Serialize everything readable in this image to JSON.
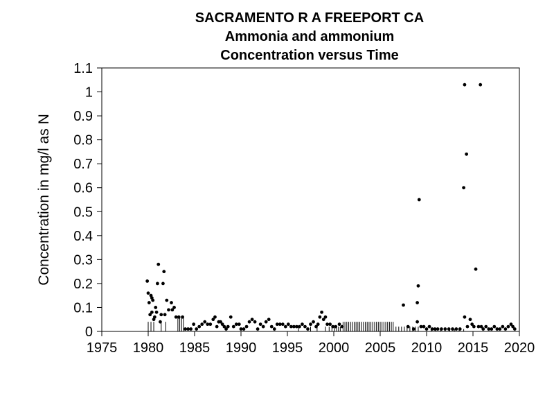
{
  "chart_data": {
    "type": "scatter",
    "title": [
      "SACRAMENTO R A FREEPORT CA",
      "Ammonia and ammonium",
      "Concentration versus Time"
    ],
    "xlabel": "",
    "ylabel": "Concentration in mg/l as N",
    "xlim": [
      1975,
      2020
    ],
    "ylim": [
      0,
      1.1
    ],
    "xticks": [
      1975,
      1980,
      1985,
      1990,
      1995,
      2000,
      2005,
      2010,
      2015,
      2020
    ],
    "yticks": [
      0,
      0.1,
      0.2,
      0.3,
      0.4,
      0.5,
      0.6,
      0.7,
      0.8,
      0.9,
      1,
      1.1
    ],
    "grid": false,
    "legend": "none",
    "marker_color": "#000000",
    "censored_values": {
      "description": "less-than values drawn as vertical lines from zero",
      "points": [
        [
          1980.0,
          0.04
        ],
        [
          1980.3,
          0.04
        ],
        [
          1980.6,
          0.04
        ],
        [
          1981.4,
          0.04
        ],
        [
          1981.9,
          0.04
        ],
        [
          1983.2,
          0.06
        ],
        [
          1983.4,
          0.06
        ],
        [
          1983.6,
          0.06
        ],
        [
          1983.8,
          0.06
        ],
        [
          1996.2,
          0.02
        ],
        [
          1997.5,
          0.02
        ],
        [
          1998.2,
          0.02
        ],
        [
          1999.1,
          0.02
        ],
        [
          1999.5,
          0.02
        ],
        [
          1999.8,
          0.02
        ],
        [
          2000.1,
          0.02
        ],
        [
          2000.3,
          0.02
        ],
        [
          2000.5,
          0.02
        ],
        [
          2000.7,
          0.02
        ],
        [
          2001.0,
          0.04
        ],
        [
          2001.2,
          0.04
        ],
        [
          2001.4,
          0.04
        ],
        [
          2001.6,
          0.04
        ],
        [
          2001.8,
          0.04
        ],
        [
          2002.0,
          0.04
        ],
        [
          2002.2,
          0.04
        ],
        [
          2002.4,
          0.04
        ],
        [
          2002.6,
          0.04
        ],
        [
          2002.8,
          0.04
        ],
        [
          2003.0,
          0.04
        ],
        [
          2003.2,
          0.04
        ],
        [
          2003.4,
          0.04
        ],
        [
          2003.6,
          0.04
        ],
        [
          2003.8,
          0.04
        ],
        [
          2004.0,
          0.04
        ],
        [
          2004.2,
          0.04
        ],
        [
          2004.4,
          0.04
        ],
        [
          2004.6,
          0.04
        ],
        [
          2004.8,
          0.04
        ],
        [
          2005.0,
          0.04
        ],
        [
          2005.2,
          0.04
        ],
        [
          2005.4,
          0.04
        ],
        [
          2005.6,
          0.04
        ],
        [
          2005.8,
          0.04
        ],
        [
          2006.0,
          0.04
        ],
        [
          2006.2,
          0.04
        ],
        [
          2006.4,
          0.04
        ],
        [
          2006.7,
          0.02
        ],
        [
          2007.0,
          0.02
        ],
        [
          2007.3,
          0.02
        ],
        [
          2007.6,
          0.02
        ],
        [
          2007.9,
          0.02
        ],
        [
          2008.2,
          0.02
        ],
        [
          2008.5,
          0.02
        ],
        [
          2008.8,
          0.02
        ],
        [
          2009.1,
          0.02
        ],
        [
          2010.5,
          0.01
        ],
        [
          2011.0,
          0.01
        ],
        [
          2011.5,
          0.01
        ],
        [
          2012.0,
          0.01
        ],
        [
          2012.5,
          0.01
        ],
        [
          2013.0,
          0.01
        ],
        [
          2013.5,
          0.01
        ],
        [
          2014.0,
          0.01
        ]
      ]
    },
    "points": [
      [
        1979.9,
        0.21
      ],
      [
        1980.0,
        0.16
      ],
      [
        1980.1,
        0.12
      ],
      [
        1980.3,
        0.15
      ],
      [
        1980.4,
        0.14
      ],
      [
        1980.5,
        0.13
      ],
      [
        1980.2,
        0.07
      ],
      [
        1980.4,
        0.08
      ],
      [
        1980.6,
        0.05
      ],
      [
        1980.7,
        0.06
      ],
      [
        1980.8,
        0.1
      ],
      [
        1980.9,
        0.08
      ],
      [
        1981.0,
        0.2
      ],
      [
        1981.1,
        0.28
      ],
      [
        1981.3,
        0.04
      ],
      [
        1981.4,
        0.07
      ],
      [
        1981.6,
        0.2
      ],
      [
        1981.7,
        0.25
      ],
      [
        1981.8,
        0.07
      ],
      [
        1982.0,
        0.13
      ],
      [
        1982.2,
        0.09
      ],
      [
        1982.5,
        0.12
      ],
      [
        1982.6,
        0.09
      ],
      [
        1982.8,
        0.1
      ],
      [
        1983.0,
        0.06
      ],
      [
        1983.3,
        0.06
      ],
      [
        1983.7,
        0.06
      ],
      [
        1984.0,
        0.01
      ],
      [
        1984.3,
        0.01
      ],
      [
        1984.6,
        0.01
      ],
      [
        1984.9,
        0.03
      ],
      [
        1985.2,
        0.01
      ],
      [
        1985.5,
        0.02
      ],
      [
        1985.8,
        0.03
      ],
      [
        1986.1,
        0.04
      ],
      [
        1986.4,
        0.03
      ],
      [
        1986.7,
        0.03
      ],
      [
        1987.0,
        0.05
      ],
      [
        1987.2,
        0.06
      ],
      [
        1987.4,
        0.02
      ],
      [
        1987.6,
        0.04
      ],
      [
        1987.8,
        0.04
      ],
      [
        1988.0,
        0.03
      ],
      [
        1988.2,
        0.02
      ],
      [
        1988.4,
        0.01
      ],
      [
        1988.6,
        0.02
      ],
      [
        1988.9,
        0.06
      ],
      [
        1989.2,
        0.02
      ],
      [
        1989.5,
        0.03
      ],
      [
        1989.8,
        0.03
      ],
      [
        1990.0,
        0.01
      ],
      [
        1990.3,
        0.01
      ],
      [
        1990.6,
        0.02
      ],
      [
        1990.9,
        0.04
      ],
      [
        1991.2,
        0.05
      ],
      [
        1991.5,
        0.04
      ],
      [
        1991.8,
        0.01
      ],
      [
        1992.1,
        0.03
      ],
      [
        1992.4,
        0.02
      ],
      [
        1992.7,
        0.04
      ],
      [
        1993.0,
        0.05
      ],
      [
        1993.3,
        0.02
      ],
      [
        1993.6,
        0.01
      ],
      [
        1993.9,
        0.03
      ],
      [
        1994.2,
        0.03
      ],
      [
        1994.5,
        0.03
      ],
      [
        1994.8,
        0.02
      ],
      [
        1995.1,
        0.03
      ],
      [
        1995.4,
        0.02
      ],
      [
        1995.7,
        0.02
      ],
      [
        1996.0,
        0.02
      ],
      [
        1996.3,
        0.02
      ],
      [
        1996.6,
        0.03
      ],
      [
        1996.9,
        0.02
      ],
      [
        1997.2,
        0.01
      ],
      [
        1997.5,
        0.03
      ],
      [
        1997.8,
        0.04
      ],
      [
        1998.1,
        0.02
      ],
      [
        1998.3,
        0.03
      ],
      [
        1998.5,
        0.06
      ],
      [
        1998.7,
        0.08
      ],
      [
        1998.9,
        0.05
      ],
      [
        1999.1,
        0.06
      ],
      [
        1999.3,
        0.03
      ],
      [
        1999.6,
        0.03
      ],
      [
        1999.9,
        0.02
      ],
      [
        2000.2,
        0.02
      ],
      [
        2000.6,
        0.03
      ],
      [
        2000.9,
        0.02
      ],
      [
        2007.5,
        0.11
      ],
      [
        2008.0,
        0.02
      ],
      [
        2008.6,
        0.01
      ],
      [
        2009.0,
        0.12
      ],
      [
        2009.1,
        0.19
      ],
      [
        2009.2,
        0.55
      ],
      [
        2009.0,
        0.04
      ],
      [
        2009.4,
        0.02
      ],
      [
        2009.7,
        0.02
      ],
      [
        2010.0,
        0.01
      ],
      [
        2010.3,
        0.02
      ],
      [
        2010.6,
        0.01
      ],
      [
        2010.9,
        0.01
      ],
      [
        2011.2,
        0.01
      ],
      [
        2011.6,
        0.01
      ],
      [
        2012.0,
        0.01
      ],
      [
        2012.4,
        0.01
      ],
      [
        2012.8,
        0.01
      ],
      [
        2013.2,
        0.01
      ],
      [
        2013.6,
        0.01
      ],
      [
        2014.0,
        0.6
      ],
      [
        2014.1,
        1.03
      ],
      [
        2014.3,
        0.74
      ],
      [
        2014.1,
        0.06
      ],
      [
        2014.4,
        0.02
      ],
      [
        2014.7,
        0.05
      ],
      [
        2014.9,
        0.03
      ],
      [
        2015.1,
        0.02
      ],
      [
        2015.3,
        0.26
      ],
      [
        2015.6,
        0.02
      ],
      [
        2015.8,
        1.03
      ],
      [
        2015.9,
        0.02
      ],
      [
        2016.1,
        0.01
      ],
      [
        2016.4,
        0.02
      ],
      [
        2016.7,
        0.01
      ],
      [
        2017.0,
        0.01
      ],
      [
        2017.3,
        0.02
      ],
      [
        2017.6,
        0.01
      ],
      [
        2017.9,
        0.01
      ],
      [
        2018.2,
        0.02
      ],
      [
        2018.5,
        0.01
      ],
      [
        2018.8,
        0.02
      ],
      [
        2019.1,
        0.03
      ],
      [
        2019.3,
        0.02
      ],
      [
        2019.5,
        0.01
      ]
    ]
  }
}
